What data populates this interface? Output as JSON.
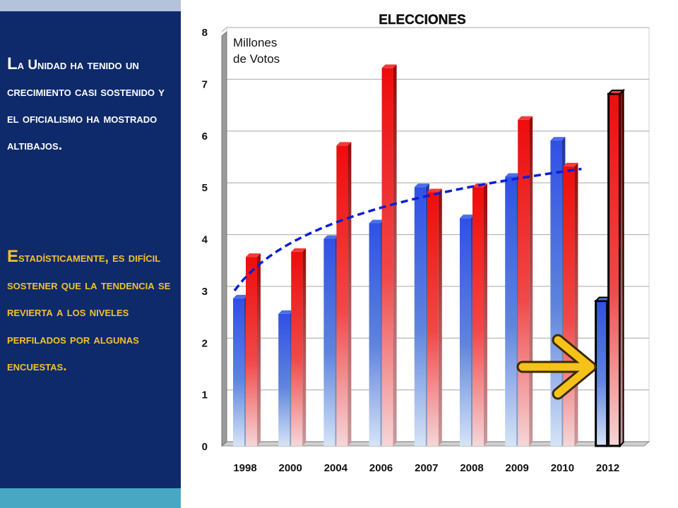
{
  "sidebar": {
    "paragraph1": "La Unidad ha tenido un crecimiento casi sostenido y el oficialismo ha mostrado altibajos.",
    "paragraph2": "Estadísticamente, es difícil sostener que la tendencia se revierta a los niveles perfilados por algunas encuestas."
  },
  "colors": {
    "sidebar_bg": "#0e2a6b",
    "sidebar_top": "#b4c3d9",
    "sidebar_bottom": "#48a8c4",
    "paragraph1_text": "#ffffff",
    "paragraph2_text": "#f2c12e",
    "blue_series": "#2f52e0",
    "red_series": "#e81010",
    "trendline": "#0a1fd6",
    "arrow": "#f6c21a"
  },
  "chart_data": {
    "type": "bar",
    "title": "ELECCIONES",
    "ylabel": "Millones de Votos",
    "xlabel": "",
    "ylim": [
      0,
      8
    ],
    "yticks": [
      "0",
      "1",
      "2",
      "3",
      "4",
      "5",
      "6",
      "7",
      "8"
    ],
    "grid": true,
    "categories": [
      "1998",
      "2000",
      "2004",
      "2006",
      "2007",
      "2008",
      "2009",
      "2010",
      "2012"
    ],
    "series": [
      {
        "values": [
          2.85,
          2.55,
          4.0,
          4.3,
          5.0,
          4.4,
          5.2,
          5.9,
          2.8
        ],
        "color": "#2f52e0"
      },
      {
        "values": [
          3.65,
          3.75,
          5.8,
          7.3,
          4.9,
          5.0,
          6.3,
          5.4,
          6.8
        ],
        "color": "#e81010"
      }
    ],
    "trendline": {
      "style": "dashed",
      "color": "#0a1fd6",
      "x_from": "1998",
      "x_to": "2010",
      "y_from": 3.0,
      "y_to": 5.35
    },
    "annotation": {
      "type": "arrow",
      "color": "#f6c21a",
      "points_to": "2012"
    },
    "highlighted_category": "2012"
  }
}
